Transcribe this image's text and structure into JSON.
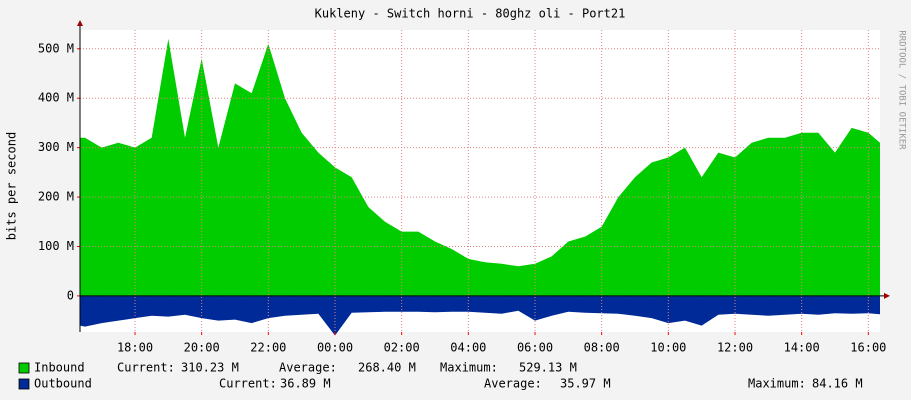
{
  "chart_data": {
    "type": "area",
    "title": "Kukleny - Switch horni - 80ghz oli - Port21",
    "y_label": "bits per second",
    "watermark": "RRDTOOL / TOBI OETIKER",
    "xlim": [
      16.35,
      40.35
    ],
    "xticks": [
      {
        "value": 18,
        "label": "18:00"
      },
      {
        "value": 20,
        "label": "20:00"
      },
      {
        "value": 22,
        "label": "22:00"
      },
      {
        "value": 24,
        "label": "00:00"
      },
      {
        "value": 26,
        "label": "02:00"
      },
      {
        "value": 28,
        "label": "04:00"
      },
      {
        "value": 30,
        "label": "06:00"
      },
      {
        "value": 32,
        "label": "08:00"
      },
      {
        "value": 34,
        "label": "10:00"
      },
      {
        "value": 36,
        "label": "12:00"
      },
      {
        "value": 38,
        "label": "14:00"
      },
      {
        "value": 40,
        "label": "16:00"
      }
    ],
    "ylim": [
      -73,
      538
    ],
    "yticks": [
      0,
      {
        "value": 100,
        "label": "100 M"
      },
      {
        "value": 200,
        "label": "200 M"
      },
      {
        "value": 300,
        "label": "300 M"
      },
      {
        "value": 400,
        "label": "400 M"
      },
      {
        "value": 500,
        "label": "500 M"
      }
    ],
    "grid": true,
    "x": [
      16.35,
      16.5,
      17,
      17.5,
      18,
      18.5,
      19,
      19.5,
      20,
      20.5,
      21,
      21.5,
      22,
      22.5,
      23,
      23.5,
      24,
      24.5,
      25,
      25.5,
      26,
      26.5,
      27,
      27.5,
      28,
      28.5,
      29,
      29.5,
      30,
      30.5,
      31,
      31.5,
      32,
      32.5,
      33,
      33.5,
      34,
      34.5,
      35,
      35.5,
      36,
      36.5,
      37,
      37.5,
      38,
      38.5,
      39,
      39.5,
      40,
      40.35
    ],
    "series": [
      {
        "name": "Inbound",
        "color": "#00cc00",
        "values": [
          320,
          320,
          300,
          310,
          300,
          320,
          520,
          320,
          480,
          300,
          430,
          410,
          510,
          400,
          330,
          290,
          260,
          240,
          180,
          150,
          130,
          130,
          110,
          95,
          75,
          68,
          65,
          60,
          65,
          80,
          110,
          120,
          140,
          200,
          240,
          270,
          280,
          300,
          240,
          290,
          280,
          310,
          320,
          320,
          330,
          330,
          290,
          340,
          330,
          310
        ],
        "stats": [
          {
            "label": "Current:",
            "value": "310.23 M"
          },
          {
            "label": "Average:",
            "value": "268.40 M"
          },
          {
            "label": "Maximum:",
            "value": "529.13 M"
          }
        ]
      },
      {
        "name": "Outbound",
        "color": "#002a97",
        "values": [
          -60,
          -62,
          -55,
          -50,
          -45,
          -40,
          -42,
          -38,
          -45,
          -50,
          -48,
          -55,
          -45,
          -40,
          -38,
          -36,
          -80,
          -34,
          -33,
          -32,
          -32,
          -32,
          -33,
          -32,
          -32,
          -34,
          -36,
          -30,
          -50,
          -40,
          -32,
          -34,
          -35,
          -36,
          -40,
          -45,
          -55,
          -50,
          -60,
          -38,
          -36,
          -38,
          -40,
          -38,
          -36,
          -38,
          -35,
          -36,
          -35,
          -37
        ],
        "stats": [
          {
            "label": "Current:",
            "value": "36.89 M"
          },
          {
            "label": "Average:",
            "value": "35.97 M"
          },
          {
            "label": "Maximum:",
            "value": "84.16 M"
          }
        ]
      }
    ]
  }
}
